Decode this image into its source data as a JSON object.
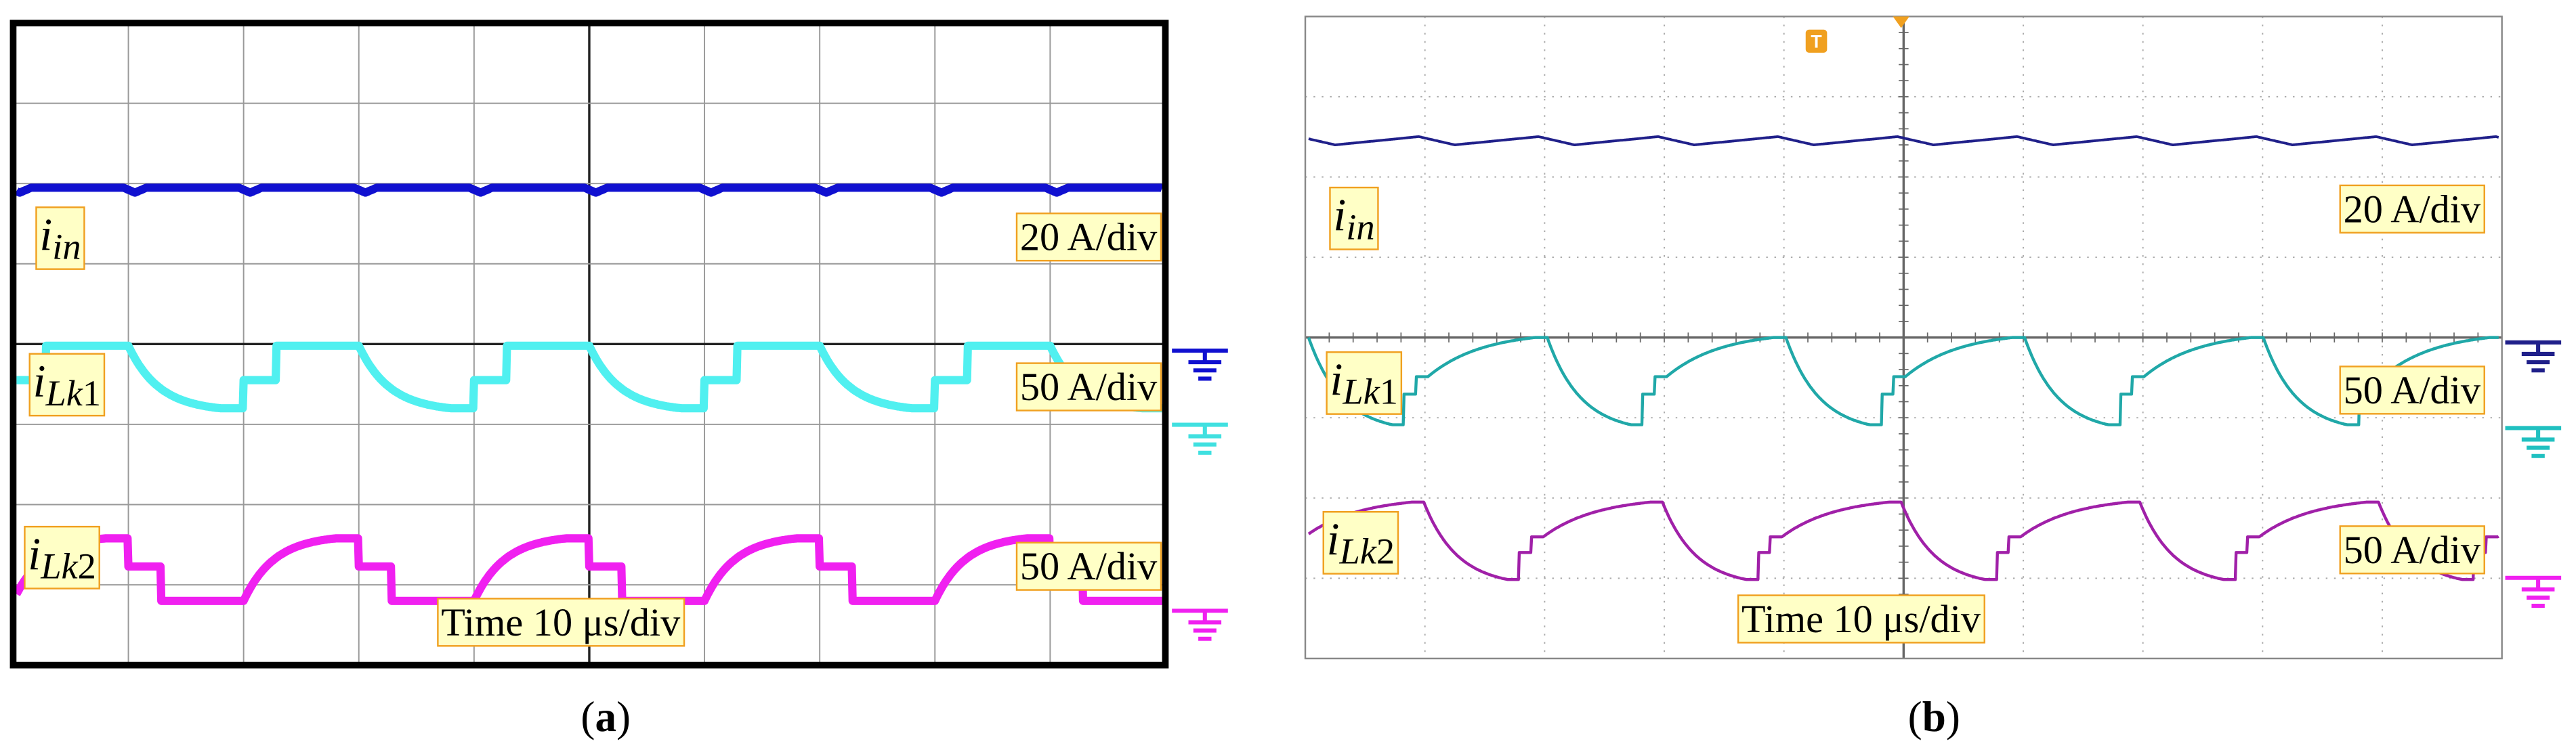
{
  "panels": [
    {
      "caption": [
        "(",
        "a",
        ")"
      ],
      "traces": [
        {
          "symbol": "i",
          "subscript": "in",
          "scale": "20 A/div"
        },
        {
          "symbol": "i",
          "subscript": "Lk",
          "index": "1",
          "scale": "50 A/div"
        },
        {
          "symbol": "i",
          "subscript": "Lk",
          "index": "2",
          "scale": "50 A/div"
        }
      ],
      "timebase": "Time 10 μs/div"
    },
    {
      "caption": [
        "(",
        "b",
        ")"
      ],
      "trigger": "T",
      "traces": [
        {
          "symbol": "i",
          "subscript": "in",
          "scale": "20 A/div"
        },
        {
          "symbol": "i",
          "subscript": "Lk",
          "index": "1",
          "scale": "50 A/div"
        },
        {
          "symbol": "i",
          "subscript": "Lk",
          "index": "2",
          "scale": "50 A/div"
        }
      ],
      "timebase": "Time 10 μs/div"
    }
  ]
}
